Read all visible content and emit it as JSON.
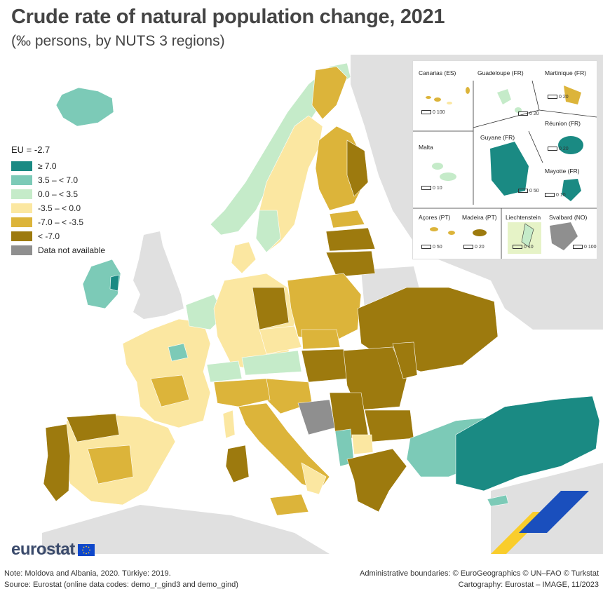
{
  "title": "Crude rate of natural population change, 2021",
  "subtitle": "(‰ persons, by NUTS 3 regions)",
  "legend": {
    "eu_value": "EU = -2.7",
    "classes": [
      {
        "label": "≥ 7.0",
        "color": "#1a8a83"
      },
      {
        "label": "3.5 – < 7.0",
        "color": "#7ccab7"
      },
      {
        "label": "0.0 – < 3.5",
        "color": "#c5ebc9"
      },
      {
        "label": "-3.5 – < 0.0",
        "color": "#fbe7a1"
      },
      {
        "label": "-7.0 – < -3.5",
        "color": "#dcb43a"
      },
      {
        "label": "< -7.0",
        "color": "#9d7a0e"
      },
      {
        "label": "Data not available",
        "color": "#8f8f8f"
      }
    ]
  },
  "insets": {
    "canarias": {
      "name": "Canarias (ES)",
      "scale": "0   100"
    },
    "guadeloupe": {
      "name": "Guadeloupe (FR)",
      "scale": "0   20"
    },
    "martinique": {
      "name": "Martinique (FR)",
      "scale": "0   20"
    },
    "reunion": {
      "name": "Réunion (FR)",
      "scale": "0   20"
    },
    "malta": {
      "name": "Malta",
      "scale": "0   10"
    },
    "guyane": {
      "name": "Guyane (FR)",
      "scale": "0   50"
    },
    "mayotte": {
      "name": "Mayotte (FR)",
      "scale": "0   10"
    },
    "acores": {
      "name": "Açores (PT)",
      "scale": "0   50"
    },
    "madeira": {
      "name": "Madeira (PT)",
      "scale": "0   20"
    },
    "liechtenstein": {
      "name": "Liechtenstein",
      "scale": "0   10"
    },
    "svalbard": {
      "name": "Svalbard (NO)",
      "scale": "0 100"
    }
  },
  "logo": {
    "text": "eurostat"
  },
  "footer": {
    "note": "Note: Moldova and Albania, 2020. Türkiye: 2019.",
    "source": "Source: Eurostat (online data codes: demo_r_gind3 and demo_gind)",
    "boundaries": "Administrative boundaries: © EuroGeographics © UN–FAO © Turkstat",
    "cartography": "Cartography: Eurostat – IMAGE, 11/2023"
  },
  "colors": {
    "sea": "#ffffff",
    "non_eu_land": "#e0e0e0",
    "border": "#ffffff"
  }
}
